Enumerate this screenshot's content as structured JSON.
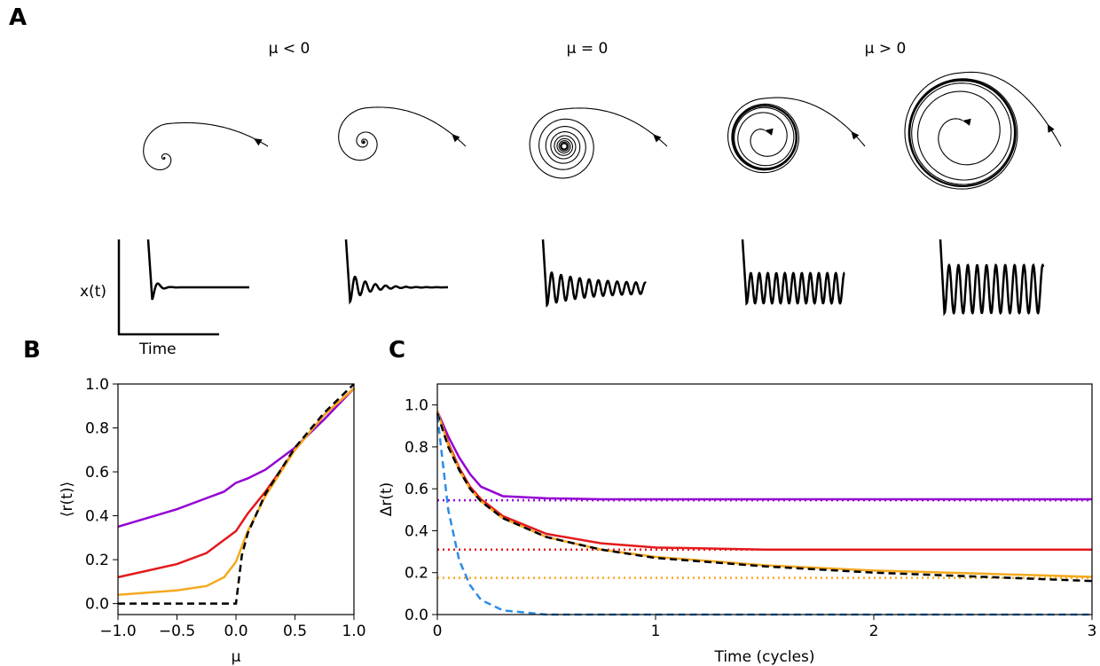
{
  "panel_a": {
    "label": "A",
    "columns": [
      "μ < 0",
      "μ = 0",
      "μ > 0"
    ],
    "ylabel": "x(t)",
    "xlabel": "Time"
  },
  "chart_data": [
    {
      "type": "line",
      "panel_label": "B",
      "xlabel": "μ",
      "ylabel": "⟨r(t)⟩",
      "x": [
        -1,
        -0.75,
        -0.5,
        -0.25,
        -0.1,
        0,
        0.05,
        0.1,
        0.25,
        0.5,
        0.75,
        1
      ],
      "series": [
        {
          "color": "#9400d3",
          "style": "solid",
          "values": [
            0.35,
            0.39,
            0.43,
            0.48,
            0.51,
            0.55,
            0.56,
            0.57,
            0.61,
            0.71,
            0.84,
            0.98
          ]
        },
        {
          "color": "#e31a1c",
          "style": "solid",
          "values": [
            0.12,
            0.15,
            0.18,
            0.23,
            0.29,
            0.33,
            0.37,
            0.41,
            0.51,
            0.7,
            0.86,
            0.98
          ]
        },
        {
          "color": "#f5a91f",
          "style": "solid",
          "values": [
            0.04,
            0.05,
            0.06,
            0.08,
            0.12,
            0.19,
            0.26,
            0.33,
            0.49,
            0.7,
            0.86,
            0.98
          ]
        },
        {
          "color": "#000000",
          "style": "dashed",
          "values": [
            0,
            0,
            0,
            0,
            0,
            0,
            0.22,
            0.32,
            0.5,
            0.71,
            0.87,
            1.0
          ]
        }
      ],
      "xlim": [
        -1,
        1
      ],
      "ylim": [
        -0.05,
        1.0
      ],
      "xticks": [
        {
          "value": -1,
          "label": "−1.0"
        },
        {
          "value": -0.5,
          "label": "−0.5"
        },
        {
          "value": 0,
          "label": "0.0"
        },
        {
          "value": 0.5,
          "label": "0.5"
        },
        {
          "value": 1,
          "label": "1.0"
        }
      ],
      "yticks": [
        {
          "value": 0,
          "label": "0.0"
        },
        {
          "value": 0.2,
          "label": "0.2"
        },
        {
          "value": 0.4,
          "label": "0.4"
        },
        {
          "value": 0.6,
          "label": "0.6"
        },
        {
          "value": 0.8,
          "label": "0.8"
        },
        {
          "value": 1,
          "label": "1.0"
        }
      ]
    },
    {
      "type": "line",
      "panel_label": "C",
      "xlabel": "Time (cycles)",
      "ylabel": "Δr(t)",
      "x": [
        0,
        0.05,
        0.1,
        0.15,
        0.2,
        0.3,
        0.5,
        0.75,
        1,
        1.5,
        2,
        2.5,
        3
      ],
      "series": [
        {
          "color": "#9400d3",
          "style": "solid",
          "values": [
            0.97,
            0.85,
            0.75,
            0.67,
            0.61,
            0.565,
            0.555,
            0.55,
            0.55,
            0.55,
            0.55,
            0.55,
            0.55
          ]
        },
        {
          "color": "#e31a1c",
          "style": "solid",
          "values": [
            0.97,
            0.82,
            0.7,
            0.61,
            0.55,
            0.47,
            0.385,
            0.34,
            0.32,
            0.31,
            0.31,
            0.31,
            0.31
          ]
        },
        {
          "color": "#f5a91f",
          "style": "solid",
          "values": [
            0.97,
            0.81,
            0.69,
            0.6,
            0.54,
            0.46,
            0.37,
            0.31,
            0.275,
            0.235,
            0.21,
            0.195,
            0.18
          ]
        },
        {
          "color": "#000000",
          "style": "dashed",
          "values": [
            0.96,
            0.8,
            0.69,
            0.6,
            0.54,
            0.46,
            0.37,
            0.31,
            0.27,
            0.23,
            0.2,
            0.18,
            0.16
          ]
        },
        {
          "color": "#2b8ce6",
          "style": "dashed",
          "values": [
            0.95,
            0.5,
            0.26,
            0.14,
            0.07,
            0.02,
            0.0,
            0,
            0,
            0,
            0,
            0,
            0
          ]
        }
      ],
      "reference_lines": [
        {
          "color": "#9400d3",
          "value": 0.545
        },
        {
          "color": "#e31a1c",
          "value": 0.31
        },
        {
          "color": "#f5a91f",
          "value": 0.175
        }
      ],
      "xlim": [
        0,
        3
      ],
      "ylim": [
        0,
        1.1
      ],
      "xticks": [
        0,
        1,
        2,
        3
      ],
      "yticks": [
        {
          "value": 0,
          "label": "0.0"
        },
        {
          "value": 0.2,
          "label": "0.2"
        },
        {
          "value": 0.4,
          "label": "0.4"
        },
        {
          "value": 0.6,
          "label": "0.6"
        },
        {
          "value": 0.8,
          "label": "0.8"
        },
        {
          "value": 1,
          "label": "1.0"
        }
      ]
    }
  ]
}
